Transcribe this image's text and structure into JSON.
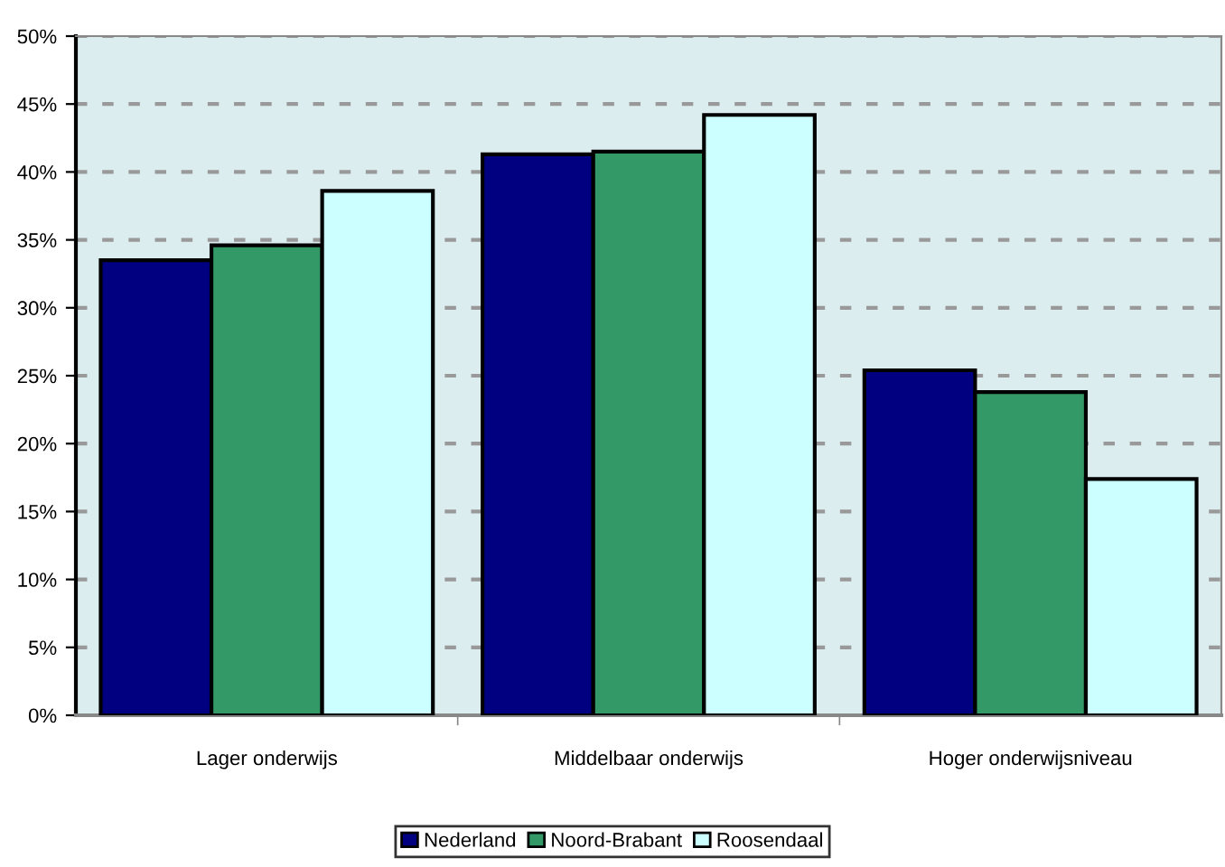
{
  "chart_data": {
    "type": "bar",
    "categories": [
      "Lager onderwijs",
      "Middelbaar onderwijs",
      "Hoger onderwijsniveau"
    ],
    "series": [
      {
        "name": "Nederland",
        "color": "#000080",
        "values": [
          33.5,
          41.3,
          25.4
        ]
      },
      {
        "name": "Noord-Brabant",
        "color": "#339966",
        "values": [
          34.6,
          41.5,
          23.8
        ]
      },
      {
        "name": "Roosendaal",
        "color": "#ccffff",
        "values": [
          38.6,
          44.2,
          17.4
        ]
      }
    ],
    "ylim": [
      0,
      50
    ],
    "yticks": [
      {
        "value": 0,
        "label": "0%"
      },
      {
        "value": 5,
        "label": "5%"
      },
      {
        "value": 10,
        "label": "10%"
      },
      {
        "value": 15,
        "label": "15%"
      },
      {
        "value": 20,
        "label": "20%"
      },
      {
        "value": 25,
        "label": "25%"
      },
      {
        "value": 30,
        "label": "30%"
      },
      {
        "value": 35,
        "label": "35%"
      },
      {
        "value": 40,
        "label": "40%"
      },
      {
        "value": 45,
        "label": "45%"
      },
      {
        "value": 50,
        "label": "50%"
      }
    ],
    "grid": "y",
    "legend": "bottom"
  }
}
